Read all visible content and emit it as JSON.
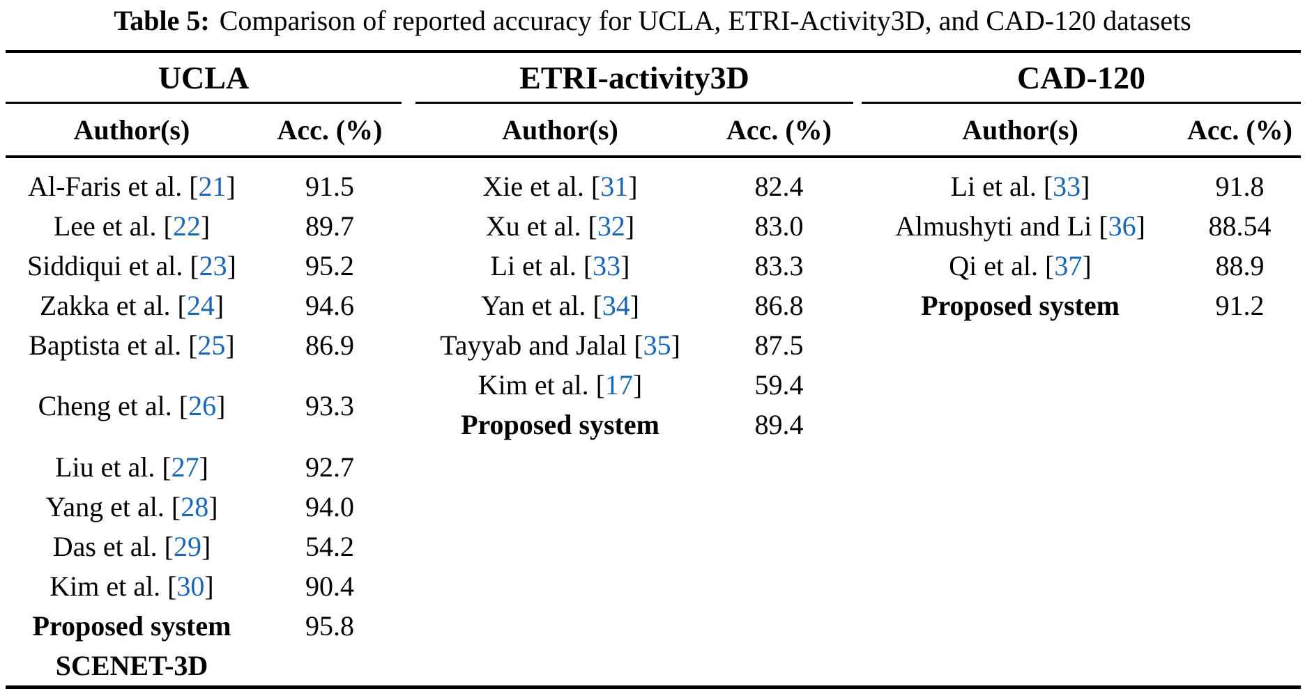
{
  "caption": {
    "label": "Table 5:",
    "text": "Comparison of reported accuracy for UCLA, ETRI-Activity3D, and CAD-120 datasets"
  },
  "colors": {
    "text": "#000000",
    "citation_link": "#1766b8",
    "rule": "#000000",
    "background": "#ffffff"
  },
  "columns": {
    "author": "Author(s)",
    "accuracy": "Acc. (%)"
  },
  "groups": [
    {
      "name": "UCLA",
      "rows": [
        {
          "author_pre": "Al-Faris et al. [",
          "cite": "21",
          "author_post": "]",
          "acc": "91.5"
        },
        {
          "author_pre": "Lee et al. [",
          "cite": "22",
          "author_post": "]",
          "acc": "89.7"
        },
        {
          "author_pre": "Siddiqui et al. [",
          "cite": "23",
          "author_post": "]",
          "acc": "95.2"
        },
        {
          "author_pre": "Zakka et al. [",
          "cite": "24",
          "author_post": "]",
          "acc": "94.6"
        },
        {
          "author_pre": "Baptista et al. [",
          "cite": "25",
          "author_post": "]",
          "acc": "86.9"
        },
        {
          "author_pre": "Cheng et al. [",
          "cite": "26",
          "author_post": "]",
          "acc": "93.3",
          "tall": true
        },
        {
          "author_pre": "Liu et al. [",
          "cite": "27",
          "author_post": "]",
          "acc": "92.7"
        },
        {
          "author_pre": "Yang et al. [",
          "cite": "28",
          "author_post": "]",
          "acc": "94.0"
        },
        {
          "author_pre": "Das et al. [",
          "cite": "29",
          "author_post": "]",
          "acc": "54.2"
        },
        {
          "author_pre": "Kim et al. [",
          "cite": "30",
          "author_post": "]",
          "acc": "90.4"
        },
        {
          "author_pre": "Proposed system",
          "cite": "",
          "author_post": "",
          "acc": "95.8",
          "bold": true
        },
        {
          "author_pre": "SCENET-3D",
          "cite": "",
          "author_post": "",
          "acc": "",
          "bold": true
        }
      ]
    },
    {
      "name": "ETRI-activity3D",
      "rows": [
        {
          "author_pre": "Xie et al. [",
          "cite": "31",
          "author_post": "]",
          "acc": "82.4"
        },
        {
          "author_pre": "Xu et al. [",
          "cite": "32",
          "author_post": "]",
          "acc": "83.0"
        },
        {
          "author_pre": "Li et al. [",
          "cite": "33",
          "author_post": "]",
          "acc": "83.3"
        },
        {
          "author_pre": "Yan et al. [",
          "cite": "34",
          "author_post": "]",
          "acc": "86.8"
        },
        {
          "author_pre": "Tayyab and Jalal [",
          "cite": "35",
          "author_post": "]",
          "acc": "87.5"
        },
        {
          "author_pre": "Kim et al. [",
          "cite": "17",
          "author_post": "]",
          "acc": "59.4"
        },
        {
          "author_pre": "Proposed system",
          "cite": "",
          "author_post": "",
          "acc": "89.4",
          "bold": true
        }
      ]
    },
    {
      "name": "CAD-120",
      "rows": [
        {
          "author_pre": "Li et al. [",
          "cite": "33",
          "author_post": "]",
          "acc": "91.8"
        },
        {
          "author_pre": "Almushyti and Li [",
          "cite": "36",
          "author_post": "]",
          "acc": "88.54"
        },
        {
          "author_pre": "Qi et al. [",
          "cite": "37",
          "author_post": "]",
          "acc": "88.9"
        },
        {
          "author_pre": "Proposed system",
          "cite": "",
          "author_post": "",
          "acc": "91.2",
          "bold": true
        }
      ]
    }
  ]
}
